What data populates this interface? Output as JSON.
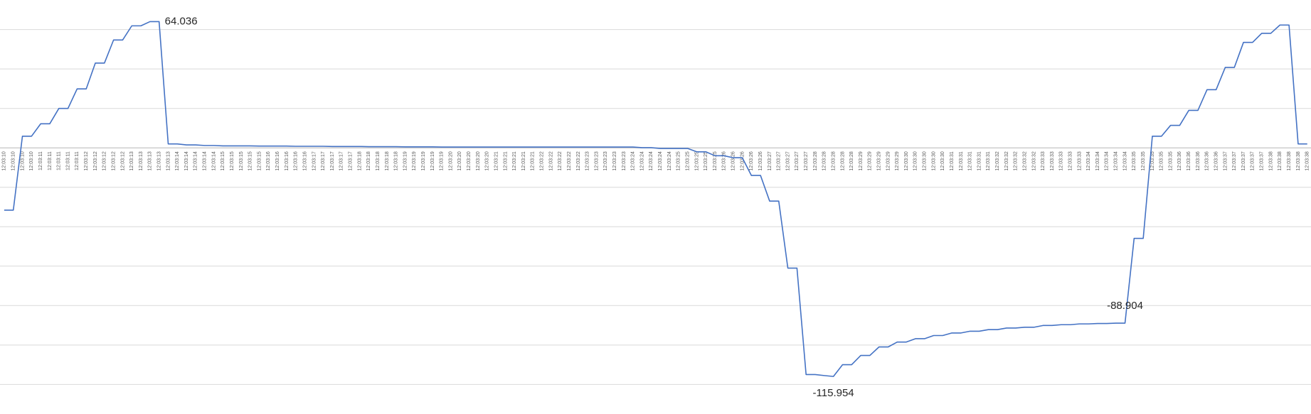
{
  "chart_data": {
    "type": "line",
    "categories": [
      "12:03:10",
      "12:03:10",
      "12:03:10",
      "12:03:10",
      "12:03:11",
      "12:03:11",
      "12:03:11",
      "12:03:11",
      "12:03:11",
      "12:03:12",
      "12:03:12",
      "12:03:12",
      "12:03:12",
      "12:03:12",
      "12:03:13",
      "12:03:13",
      "12:03:13",
      "12:03:13",
      "12:03:13",
      "12:03:14",
      "12:03:14",
      "12:03:14",
      "12:03:14",
      "12:03:14",
      "12:03:15",
      "12:03:15",
      "12:03:15",
      "12:03:15",
      "12:03:15",
      "12:03:16",
      "12:03:16",
      "12:03:16",
      "12:03:16",
      "12:03:16",
      "12:03:17",
      "12:03:17",
      "12:03:17",
      "12:03:17",
      "12:03:17",
      "12:03:18",
      "12:03:18",
      "12:03:18",
      "12:03:18",
      "12:03:18",
      "12:03:19",
      "12:03:19",
      "12:03:19",
      "12:03:19",
      "12:03:19",
      "12:03:20",
      "12:03:20",
      "12:03:20",
      "12:03:20",
      "12:03:20",
      "12:03:21",
      "12:03:21",
      "12:03:21",
      "12:03:21",
      "12:03:21",
      "12:03:22",
      "12:03:22",
      "12:03:22",
      "12:03:22",
      "12:03:22",
      "12:03:23",
      "12:03:23",
      "12:03:23",
      "12:03:23",
      "12:03:23",
      "12:03:24",
      "12:03:24",
      "12:03:24",
      "12:03:24",
      "12:03:24",
      "12:03:25",
      "12:03:25",
      "12:03:25",
      "12:03:25",
      "12:03:25",
      "12:03:26",
      "12:03:26",
      "12:03:26",
      "12:03:26",
      "12:03:26",
      "12:03:27",
      "12:03:27",
      "12:03:27",
      "12:03:27",
      "12:03:27",
      "12:03:28",
      "12:03:28",
      "12:03:28",
      "12:03:28",
      "12:03:28",
      "12:03:29",
      "12:03:29",
      "12:03:29",
      "12:03:29",
      "12:03:29",
      "12:03:30",
      "12:03:30",
      "12:03:30",
      "12:03:30",
      "12:03:30",
      "12:03:31",
      "12:03:31",
      "12:03:31",
      "12:03:31",
      "12:03:31",
      "12:03:32",
      "12:03:32",
      "12:03:32",
      "12:03:32",
      "12:03:32",
      "12:03:33",
      "12:03:33",
      "12:03:33",
      "12:03:33",
      "12:03:33",
      "12:03:34",
      "12:03:34",
      "12:03:34",
      "12:03:34",
      "12:03:34",
      "12:03:35",
      "12:03:35",
      "12:03:35",
      "12:03:35",
      "12:03:35",
      "12:03:36",
      "12:03:36",
      "12:03:36",
      "12:03:36",
      "12:03:36",
      "12:03:37",
      "12:03:37",
      "12:03:37",
      "12:03:37",
      "12:03:37",
      "12:03:38",
      "12:03:38",
      "12:03:38",
      "12:03:38",
      "12:03:38"
    ],
    "series": [
      {
        "color": "#4472c4",
        "values": [
          -31.6,
          -31.6,
          5.9,
          5.9,
          12.2,
          12.2,
          20,
          20,
          29.9,
          29.9,
          43,
          43,
          54.7,
          54.7,
          61.9,
          61.9,
          64.036,
          64.036,
          2,
          2,
          1.5,
          1.5,
          1.2,
          1.2,
          1,
          1,
          1,
          1,
          0.9,
          0.9,
          0.9,
          0.9,
          0.8,
          0.8,
          0.8,
          0.8,
          0.7,
          0.7,
          0.7,
          0.7,
          0.6,
          0.6,
          0.6,
          0.6,
          0.5,
          0.5,
          0.5,
          0.5,
          0.4,
          0.4,
          0.4,
          0.4,
          0.4,
          0.4,
          0.4,
          0.4,
          0.4,
          0.4,
          0.4,
          0.4,
          0.4,
          0.4,
          0.4,
          0.4,
          0.4,
          0.4,
          0.4,
          0.4,
          0.4,
          0.4,
          0.1,
          0.1,
          -0.3,
          -0.3,
          -0.3,
          -0.3,
          -2,
          -2,
          -4,
          -4,
          -5,
          -5,
          -14,
          -14,
          -27,
          -27,
          -61,
          -61,
          -115,
          -115,
          -115.5,
          -115.954,
          -110,
          -110,
          -105.3,
          -105.3,
          -101,
          -101,
          -98.5,
          -98.5,
          -96.8,
          -96.8,
          -95.2,
          -95.2,
          -93.9,
          -93.9,
          -93,
          -93,
          -92.2,
          -92.2,
          -91.4,
          -91.4,
          -91,
          -91,
          -90.1,
          -90.1,
          -89.7,
          -89.7,
          -89.3,
          -89.3,
          -89.1,
          -89.1,
          -88.904,
          -88.904,
          -45.9,
          -45.9,
          5.9,
          5.9,
          11.4,
          11.4,
          19,
          19,
          29.5,
          29.5,
          40.8,
          40.8,
          53.5,
          53.5,
          58.1,
          58.1,
          62.3,
          62.3,
          2,
          2
        ],
        "value_labels": [
          null,
          null,
          null,
          null,
          null,
          null,
          null,
          null,
          null,
          null,
          null,
          null,
          null,
          null,
          null,
          null,
          null,
          "64.036",
          null,
          null,
          null,
          null,
          null,
          null,
          null,
          null,
          null,
          null,
          null,
          null,
          null,
          null,
          null,
          null,
          null,
          null,
          null,
          null,
          null,
          null,
          null,
          null,
          null,
          null,
          null,
          null,
          null,
          null,
          null,
          null,
          null,
          null,
          null,
          null,
          null,
          null,
          null,
          null,
          null,
          null,
          null,
          null,
          null,
          null,
          null,
          null,
          null,
          null,
          null,
          null,
          null,
          null,
          null,
          null,
          null,
          null,
          null,
          null,
          null,
          null,
          null,
          null,
          null,
          null,
          null,
          null,
          null,
          null,
          null,
          null,
          null,
          "-115.954",
          null,
          null,
          null,
          null,
          null,
          null,
          null,
          null,
          null,
          null,
          null,
          null,
          null,
          null,
          null,
          null,
          null,
          null,
          null,
          null,
          null,
          null,
          null,
          null,
          null,
          null,
          null,
          null,
          null,
          null,
          null,
          "-88.904",
          null,
          null,
          null,
          null,
          null,
          null,
          null,
          null,
          null,
          null,
          null,
          null,
          null,
          null,
          null,
          null,
          null,
          null,
          null,
          null
        ]
      }
    ],
    "ylim": [
      -135,
      75
    ],
    "yticks": [
      -120,
      -100,
      -80,
      -60,
      -40,
      -20,
      0,
      20,
      40,
      60
    ],
    "grid": true
  }
}
